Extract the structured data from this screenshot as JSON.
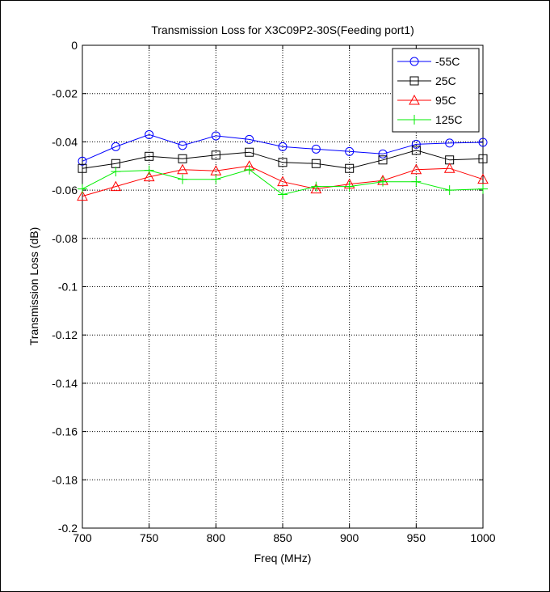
{
  "chart_data": {
    "type": "line",
    "title": "Transmission Loss for X3C09P2-30S(Feeding port1)",
    "xlabel": "Freq (MHz)",
    "ylabel": "Transmission Loss (dB)",
    "xlim": [
      700,
      1000
    ],
    "ylim": [
      -0.2,
      0
    ],
    "x_ticks": [
      700,
      750,
      800,
      850,
      900,
      950,
      1000
    ],
    "x_tick_labels": [
      "700",
      "750",
      "800",
      "850",
      "900",
      "950",
      "1000"
    ],
    "y_ticks": [
      0,
      -0.02,
      -0.04,
      -0.06,
      -0.08,
      -0.1,
      -0.12,
      -0.14,
      -0.16,
      -0.18,
      -0.2
    ],
    "y_tick_labels": [
      "0",
      "-0.02",
      "-0.04",
      "-0.06",
      "-0.08",
      "-0.1",
      "-0.12",
      "-0.14",
      "-0.16",
      "-0.18",
      "-0.2"
    ],
    "grid": true,
    "legend_position": "top-right",
    "x": [
      700,
      725,
      750,
      775,
      800,
      825,
      850,
      875,
      900,
      925,
      950,
      975,
      1000
    ],
    "series": [
      {
        "name": "-55C",
        "color": "#0000ff",
        "marker": "circle",
        "values": [
          -0.048,
          -0.042,
          -0.037,
          -0.0415,
          -0.0375,
          -0.039,
          -0.042,
          -0.043,
          -0.044,
          -0.045,
          -0.041,
          -0.0405,
          -0.0402
        ]
      },
      {
        "name": "25C",
        "color": "#000000",
        "marker": "square",
        "values": [
          -0.051,
          -0.049,
          -0.046,
          -0.047,
          -0.0455,
          -0.0443,
          -0.0485,
          -0.049,
          -0.051,
          -0.0475,
          -0.0435,
          -0.0475,
          -0.047
        ]
      },
      {
        "name": "95C",
        "color": "#ff0000",
        "marker": "triangle",
        "values": [
          -0.0625,
          -0.0585,
          -0.0545,
          -0.0515,
          -0.052,
          -0.05,
          -0.0565,
          -0.0595,
          -0.0575,
          -0.056,
          -0.0515,
          -0.051,
          -0.0555
        ]
      },
      {
        "name": "125C",
        "color": "#00ee00",
        "marker": "plus",
        "values": [
          -0.0595,
          -0.0523,
          -0.0518,
          -0.0555,
          -0.0555,
          -0.0515,
          -0.0618,
          -0.0585,
          -0.0585,
          -0.0565,
          -0.0565,
          -0.06,
          -0.0595
        ]
      }
    ]
  }
}
